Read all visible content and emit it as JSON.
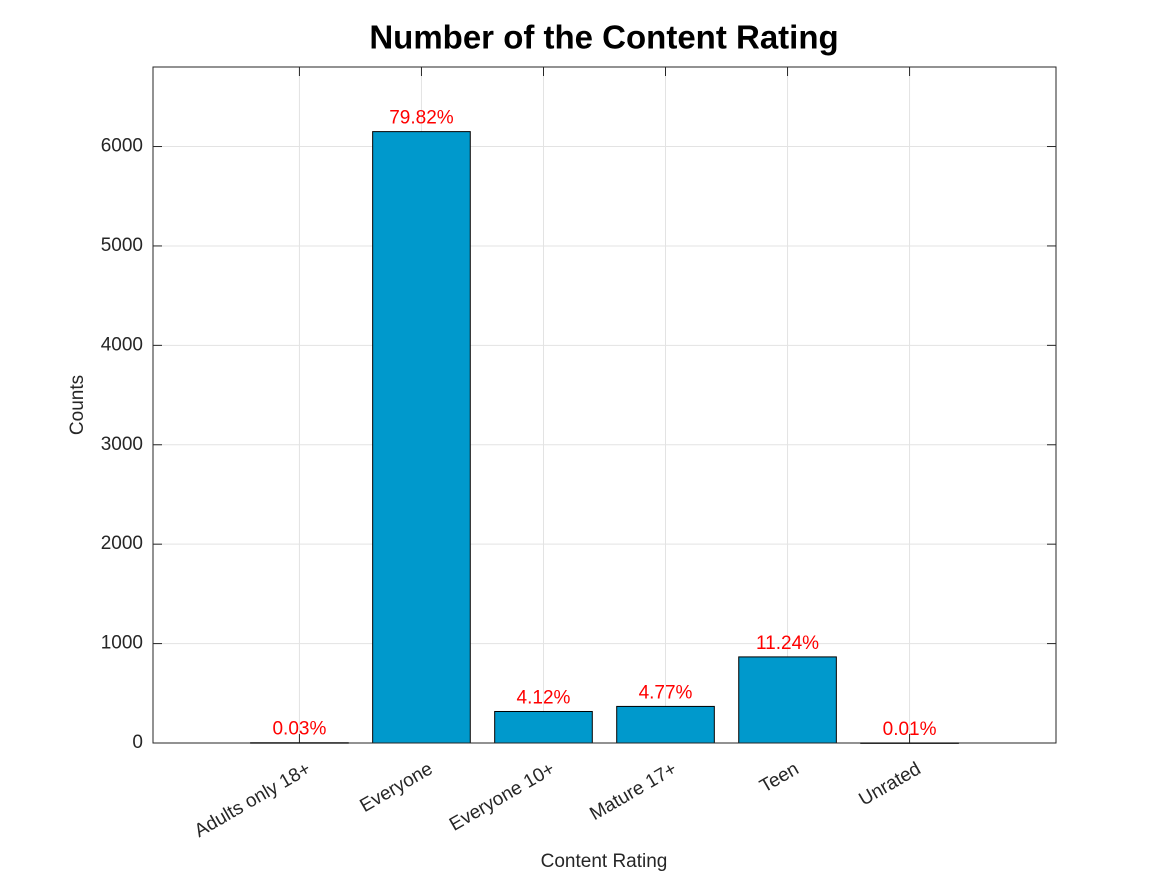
{
  "chart_data": {
    "type": "bar",
    "title": "Number of the Content Rating",
    "x_label": "Content Rating",
    "y_label": "Counts",
    "categories": [
      "Adults only 18+",
      "Everyone",
      "Everyone 10+",
      "Mature 17+",
      "Teen",
      "Unrated"
    ],
    "values": [
      3,
      6150,
      317,
      368,
      866,
      1
    ],
    "percent_labels": [
      "0.03%",
      "79.82%",
      "4.12%",
      "4.77%",
      "11.24%",
      "0.01%"
    ],
    "color": "#0099cc",
    "ylim": [
      0,
      6800
    ],
    "yticks": [
      0,
      1000,
      2000,
      3000,
      4000,
      5000,
      6000
    ],
    "grid": true
  }
}
